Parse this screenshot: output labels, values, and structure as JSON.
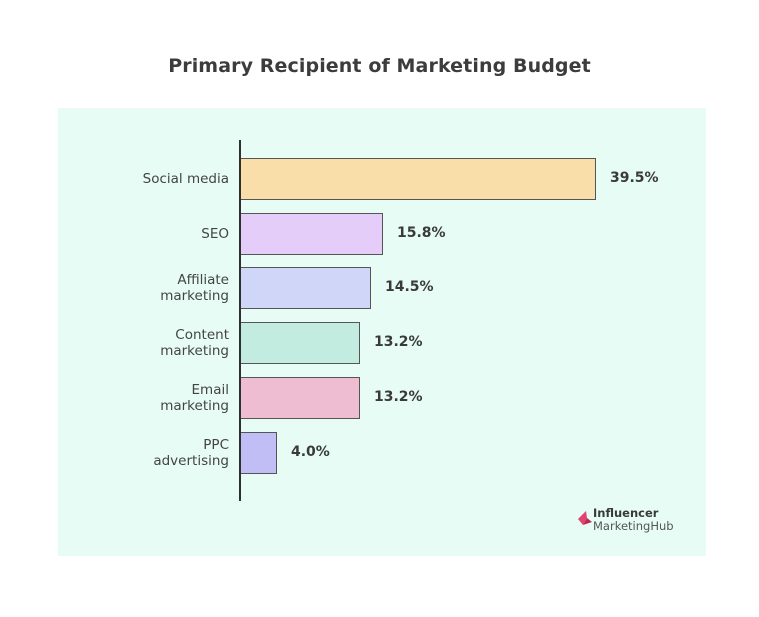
{
  "title": "Primary Recipient of Marketing Budget",
  "chart_data": {
    "type": "bar",
    "orientation": "horizontal",
    "title": "Primary Recipient of Marketing Budget",
    "xlabel": "",
    "ylabel": "",
    "categories": [
      "Social media",
      "SEO",
      "Affiliate marketing",
      "Content marketing",
      "Email marketing",
      "PPC advertising"
    ],
    "values": [
      39.5,
      15.8,
      14.5,
      13.2,
      13.2,
      4.0
    ],
    "value_labels": [
      "39.5%",
      "15.8%",
      "14.5%",
      "13.2%",
      "13.2%",
      "4.0%"
    ],
    "unit": "%",
    "grid": false,
    "legend": null,
    "bar_colors": [
      "#f9deaa",
      "#e4cdf9",
      "#cfd6f8",
      "#c2ecdf",
      "#efbdd1",
      "#c0bef5"
    ],
    "background": "#e6fcf5"
  },
  "labels": {
    "c0": [
      "Social media"
    ],
    "c1": [
      "SEO"
    ],
    "c2": [
      "Affiliate",
      "marketing"
    ],
    "c3": [
      "Content",
      "marketing"
    ],
    "c4": [
      "Email",
      "marketing"
    ],
    "c5": [
      "PPC",
      "advertising"
    ]
  },
  "logo": {
    "line1": "Influencer",
    "line2": "MarketingHub",
    "color": "#e0456f"
  }
}
